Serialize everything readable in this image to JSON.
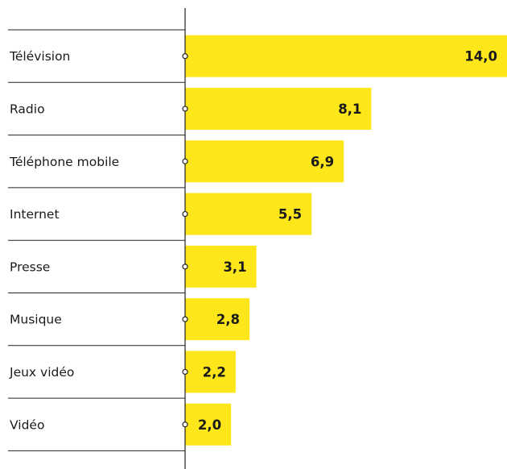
{
  "chart_data": {
    "type": "bar",
    "orientation": "horizontal",
    "categories": [
      "Télévision",
      "Radio",
      "Téléphone mobile",
      "Internet",
      "Presse",
      "Musique",
      "Jeux vidéo",
      "Vidéo"
    ],
    "values": [
      14.0,
      8.1,
      6.9,
      5.5,
      3.1,
      2.8,
      2.2,
      2.0
    ],
    "value_labels": [
      "14,0",
      "8,1",
      "6,9",
      "5,5",
      "3,1",
      "2,8",
      "2,2",
      "2,0"
    ],
    "xlim": [
      0,
      14.0
    ],
    "grid": false,
    "legend": "none",
    "colors": {
      "bar": "#fde619",
      "axis": "#222222",
      "text": "#1a1a1a"
    }
  }
}
